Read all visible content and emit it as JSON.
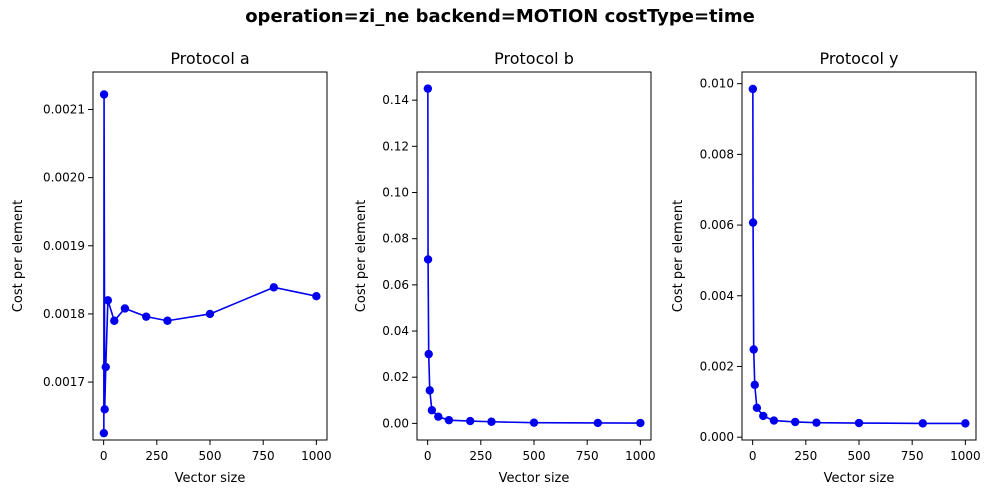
{
  "figure": {
    "suptitle": "operation=zi_ne backend=MOTION costType=time"
  },
  "colors": {
    "series": "#0000ee",
    "axes": "#000000"
  },
  "chart_data": [
    {
      "type": "line",
      "title": "Protocol a",
      "xlabel": "Vector size",
      "ylabel": "Cost per element",
      "xlim": [
        -50,
        1050
      ],
      "ylim": [
        0.001615,
        0.002155
      ],
      "xticks": [
        0,
        250,
        500,
        750,
        1000
      ],
      "yticks": [
        0.0017,
        0.0018,
        0.0019,
        0.002,
        0.0021
      ],
      "ytick_labels": [
        "0.0017",
        "0.0018",
        "0.0019",
        "0.0020",
        "0.0021"
      ],
      "x": [
        1,
        2,
        5,
        10,
        20,
        50,
        100,
        200,
        300,
        500,
        800,
        1000
      ],
      "y": [
        0.001625,
        0.002122,
        0.00166,
        0.001722,
        0.00182,
        0.00179,
        0.001808,
        0.001796,
        0.00179,
        0.0018,
        0.001839,
        0.001826
      ]
    },
    {
      "type": "line",
      "title": "Protocol b",
      "xlabel": "Vector size",
      "ylabel": "Cost per element",
      "xlim": [
        -50,
        1050
      ],
      "ylim": [
        -0.0072,
        0.1522
      ],
      "xticks": [
        0,
        250,
        500,
        750,
        1000
      ],
      "yticks": [
        0.0,
        0.02,
        0.04,
        0.06,
        0.08,
        0.1,
        0.12,
        0.14
      ],
      "ytick_labels": [
        "0.00",
        "0.02",
        "0.04",
        "0.06",
        "0.08",
        "0.10",
        "0.12",
        "0.14"
      ],
      "x": [
        1,
        2,
        5,
        10,
        20,
        50,
        100,
        200,
        300,
        500,
        800,
        1000
      ],
      "y": [
        0.145,
        0.071,
        0.03,
        0.0143,
        0.0057,
        0.0029,
        0.0014,
        0.001,
        0.0007,
        0.0003,
        0.0002,
        0.00015
      ]
    },
    {
      "type": "line",
      "title": "Protocol y",
      "xlabel": "Vector size",
      "ylabel": "Cost per element",
      "xlim": [
        -50,
        1050
      ],
      "ylim": [
        -8e-05,
        0.01033
      ],
      "xticks": [
        0,
        250,
        500,
        750,
        1000
      ],
      "yticks": [
        0.0,
        0.002,
        0.004,
        0.006,
        0.008,
        0.01
      ],
      "ytick_labels": [
        "0.000",
        "0.002",
        "0.004",
        "0.006",
        "0.008",
        "0.010"
      ],
      "x": [
        1,
        2,
        5,
        10,
        20,
        50,
        100,
        200,
        300,
        500,
        800,
        1000
      ],
      "y": [
        0.00985,
        0.00607,
        0.00248,
        0.00148,
        0.00083,
        0.0006,
        0.00047,
        0.00043,
        0.00041,
        0.0004,
        0.00039,
        0.00039
      ]
    }
  ]
}
